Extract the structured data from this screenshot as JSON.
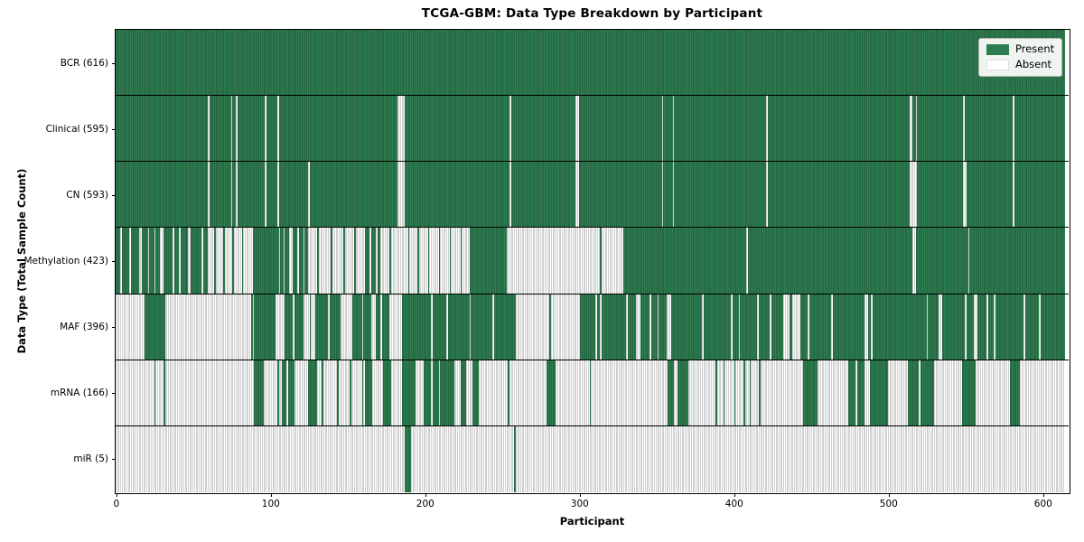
{
  "figure": {
    "title": "TCGA-GBM: Data Type Breakdown by Participant",
    "xlabel": "Participant",
    "ylabel": "Data Type (Total Sample Count)"
  },
  "legend": {
    "present_label": "Present",
    "absent_label": "Absent"
  },
  "colors": {
    "present_fill": "#2e7d50",
    "present_edge": "#1d5737",
    "absent_fill": "#ffffff",
    "absent_edge": "#a0a0a0",
    "legend_bg": "#f0f4f0",
    "legend_border": "#b5b5b5"
  },
  "chart_data": {
    "type": "heatmap",
    "title": "TCGA-GBM: Data Type Breakdown by Participant",
    "xlabel": "Participant",
    "ylabel": "Data Type (Total Sample Count)",
    "legend_entries": [
      "Present",
      "Absent"
    ],
    "legend_position": "upper right",
    "n_participants": 617,
    "x_ticks": [
      0,
      100,
      200,
      300,
      400,
      500,
      600
    ],
    "value_meaning": {
      "present": 1,
      "absent": 0
    },
    "rows": [
      {
        "label": "BCR (616)",
        "data_type": "BCR",
        "total_samples": 616,
        "base": "present",
        "exception_ranges": []
      },
      {
        "label": "Clinical (595)",
        "data_type": "Clinical",
        "total_samples": 595,
        "base": "present",
        "exception_ranges": [
          [
            60,
            60
          ],
          [
            75,
            75
          ],
          [
            78,
            78
          ],
          [
            97,
            97
          ],
          [
            105,
            105
          ],
          [
            183,
            187
          ],
          [
            256,
            256
          ],
          [
            299,
            300
          ],
          [
            355,
            355
          ],
          [
            362,
            362
          ],
          [
            423,
            423
          ],
          [
            516,
            517
          ],
          [
            520,
            520
          ],
          [
            551,
            551
          ],
          [
            583,
            583
          ]
        ]
      },
      {
        "label": "CN (593)",
        "data_type": "CN",
        "total_samples": 593,
        "base": "present",
        "exception_ranges": [
          [
            60,
            60
          ],
          [
            75,
            75
          ],
          [
            78,
            78
          ],
          [
            97,
            97
          ],
          [
            105,
            105
          ],
          [
            125,
            125
          ],
          [
            183,
            187
          ],
          [
            256,
            256
          ],
          [
            299,
            300
          ],
          [
            355,
            355
          ],
          [
            362,
            362
          ],
          [
            423,
            423
          ],
          [
            516,
            520
          ],
          [
            551,
            552
          ],
          [
            583,
            583
          ]
        ]
      },
      {
        "label": "Methylation (423)",
        "data_type": "Methylation",
        "total_samples": 423,
        "base": "present",
        "exception_ranges": [
          [
            3,
            3
          ],
          [
            9,
            9
          ],
          [
            15,
            16
          ],
          [
            21,
            21
          ],
          [
            25,
            25
          ],
          [
            29,
            30
          ],
          [
            37,
            37
          ],
          [
            41,
            41
          ],
          [
            47,
            48
          ],
          [
            56,
            56
          ],
          [
            60,
            63
          ],
          [
            65,
            69
          ],
          [
            71,
            75
          ],
          [
            77,
            81
          ],
          [
            83,
            88
          ],
          [
            106,
            106
          ],
          [
            109,
            109
          ],
          [
            113,
            114
          ],
          [
            118,
            118
          ],
          [
            122,
            122
          ],
          [
            125,
            130
          ],
          [
            132,
            139
          ],
          [
            141,
            147
          ],
          [
            149,
            154
          ],
          [
            156,
            161
          ],
          [
            165,
            165
          ],
          [
            169,
            169
          ],
          [
            172,
            177
          ],
          [
            179,
            189
          ],
          [
            191,
            195
          ],
          [
            197,
            202
          ],
          [
            204,
            209
          ],
          [
            211,
            216
          ],
          [
            218,
            223
          ],
          [
            225,
            229
          ],
          [
            254,
            314
          ],
          [
            316,
            329
          ],
          [
            410,
            410
          ],
          [
            518,
            519
          ],
          [
            554,
            554
          ]
        ]
      },
      {
        "label": "MAF (396)",
        "data_type": "MAF",
        "total_samples": 396,
        "base": "present",
        "exception_ranges": [
          [
            0,
            18
          ],
          [
            32,
            87
          ],
          [
            89,
            89
          ],
          [
            104,
            109
          ],
          [
            115,
            115
          ],
          [
            122,
            125
          ],
          [
            127,
            129
          ],
          [
            138,
            138
          ],
          [
            146,
            153
          ],
          [
            160,
            160
          ],
          [
            166,
            168
          ],
          [
            172,
            172
          ],
          [
            178,
            185
          ],
          [
            205,
            205
          ],
          [
            215,
            215
          ],
          [
            230,
            230
          ],
          [
            245,
            245
          ],
          [
            260,
            281
          ],
          [
            283,
            301
          ],
          [
            312,
            312
          ],
          [
            315,
            315
          ],
          [
            332,
            332
          ],
          [
            338,
            340
          ],
          [
            347,
            347
          ],
          [
            352,
            352
          ],
          [
            358,
            360
          ],
          [
            381,
            381
          ],
          [
            400,
            400
          ],
          [
            405,
            405
          ],
          [
            417,
            417
          ],
          [
            425,
            425
          ],
          [
            434,
            437
          ],
          [
            440,
            444
          ],
          [
            450,
            450
          ],
          [
            465,
            465
          ],
          [
            487,
            488
          ],
          [
            491,
            491
          ],
          [
            527,
            527
          ],
          [
            535,
            536
          ],
          [
            552,
            552
          ],
          [
            558,
            559
          ],
          [
            566,
            566
          ],
          [
            571,
            571
          ],
          [
            590,
            590
          ],
          [
            600,
            600
          ]
        ]
      },
      {
        "label": "mRNA (166)",
        "data_type": "mRNA",
        "total_samples": 166,
        "base": "absent",
        "exception_ranges": [
          [
            25,
            25
          ],
          [
            31,
            31
          ],
          [
            90,
            95
          ],
          [
            105,
            105
          ],
          [
            108,
            110
          ],
          [
            112,
            115
          ],
          [
            125,
            130
          ],
          [
            134,
            134
          ],
          [
            144,
            144
          ],
          [
            152,
            152
          ],
          [
            160,
            160
          ],
          [
            162,
            166
          ],
          [
            174,
            178
          ],
          [
            186,
            194
          ],
          [
            200,
            204
          ],
          [
            206,
            209
          ],
          [
            211,
            219
          ],
          [
            224,
            227
          ],
          [
            232,
            235
          ],
          [
            255,
            255
          ],
          [
            280,
            285
          ],
          [
            308,
            308
          ],
          [
            359,
            362
          ],
          [
            365,
            371
          ],
          [
            390,
            390
          ],
          [
            395,
            395
          ],
          [
            402,
            402
          ],
          [
            408,
            408
          ],
          [
            412,
            412
          ],
          [
            418,
            418
          ],
          [
            447,
            455
          ],
          [
            476,
            480
          ],
          [
            482,
            486
          ],
          [
            490,
            501
          ],
          [
            515,
            521
          ],
          [
            523,
            531
          ],
          [
            550,
            558
          ],
          [
            581,
            587
          ]
        ]
      },
      {
        "label": "miR (5)",
        "data_type": "miR",
        "total_samples": 5,
        "base": "absent",
        "exception_ranges": [
          [
            188,
            191
          ],
          [
            259,
            259
          ]
        ]
      }
    ]
  }
}
